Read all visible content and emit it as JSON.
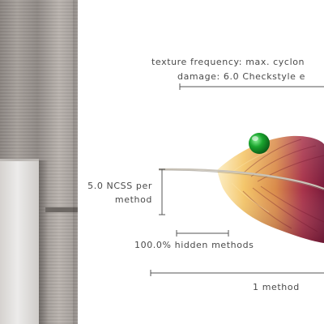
{
  "view": {
    "texture_frequency_label": "texture frequency: max. cyclon",
    "damage_label": "damage: 6.0 Checkstyle e",
    "ncss_label_line1": "5.0 NCSS per",
    "ncss_label_line2": "method",
    "hidden_methods_label": "100.0% hidden methods",
    "method_label": "1 method"
  },
  "colors": {
    "marker": "#1aa52e",
    "feather_base": "#f4c66a",
    "feather_tip": "#7a1a3a",
    "scale_line": "#555555"
  }
}
